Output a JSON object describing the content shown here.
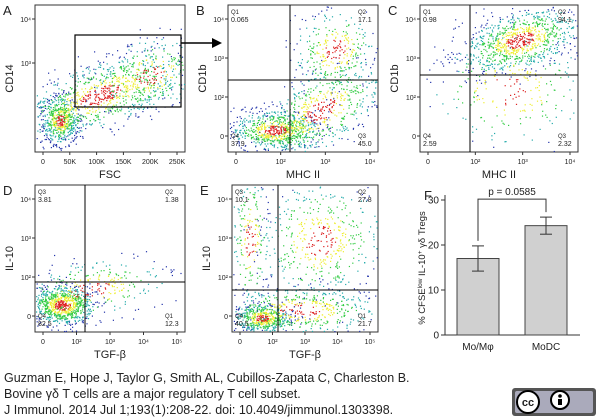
{
  "panels": [
    {
      "letter": "A",
      "y_label": "CD14",
      "x_label": "FSC",
      "x_ticks": [
        "0",
        "50K",
        "100K",
        "150K",
        "200K",
        "250K"
      ],
      "y_ticks": [
        "10⁴",
        "10³"
      ],
      "quadrants": []
    },
    {
      "letter": "B",
      "y_label": "CD1b",
      "x_label": "MHC II",
      "x_ticks": [
        "0",
        "10²",
        "10³",
        "10⁴"
      ],
      "y_ticks": [
        "10⁴",
        "10³",
        "10²",
        "0"
      ],
      "quadrants": [
        {
          "label": "Q1",
          "value": "0.065"
        },
        {
          "label": "Q2",
          "value": "17.1"
        },
        {
          "label": "Q4",
          "value": "37.9"
        },
        {
          "label": "Q3",
          "value": "45.0"
        }
      ]
    },
    {
      "letter": "C",
      "y_label": "CD1b",
      "x_label": "MHC II",
      "x_ticks": [
        "0",
        "10²",
        "10³",
        "10⁴"
      ],
      "y_ticks": [
        "10⁴",
        "10³",
        "10²",
        "0"
      ],
      "quadrants": [
        {
          "label": "Q1",
          "value": "0.98"
        },
        {
          "label": "Q2",
          "value": "94.1"
        },
        {
          "label": "Q4",
          "value": "2.59"
        },
        {
          "label": "Q3",
          "value": "2.32"
        }
      ]
    },
    {
      "letter": "D",
      "y_label": "IL-10",
      "x_label": "TGF-β",
      "x_ticks": [
        "0",
        "10²",
        "10³",
        "10⁴",
        "10⁵"
      ],
      "y_ticks": [
        "10⁴",
        "10³",
        "10²",
        "0"
      ],
      "quadrants": [
        {
          "label": "Q3",
          "value": "3.81"
        },
        {
          "label": "Q2",
          "value": "1.38"
        },
        {
          "label": "Q4",
          "value": "82.5"
        },
        {
          "label": "Q1",
          "value": "12.3"
        }
      ]
    },
    {
      "letter": "E",
      "y_label": "IL-10",
      "x_label": "TGF-β",
      "x_ticks": [
        "0",
        "10²",
        "10³",
        "10⁴",
        "10⁵"
      ],
      "y_ticks": [
        "10⁴",
        "10³",
        "10²",
        "0"
      ],
      "quadrants": [
        {
          "label": "Q3",
          "value": "10.1"
        },
        {
          "label": "Q2",
          "value": "27.8"
        },
        {
          "label": "Q4",
          "value": "40.5"
        },
        {
          "label": "Q1",
          "value": "21.7"
        }
      ]
    }
  ],
  "bar_chart": {
    "letter": "F",
    "y_label": [
      "% CFSE",
      "low",
      " IL-10",
      "+",
      " γδ Tregs"
    ],
    "categories": [
      "Mo/Mφ",
      "MoDC"
    ],
    "values": [
      17,
      24.3
    ],
    "errors": [
      2.8,
      1.9
    ],
    "color": "#d0d0d0",
    "ylim": [
      0,
      30
    ],
    "yticks": [
      0,
      10,
      20,
      30
    ],
    "annotation": "p = 0.0585"
  },
  "citation": [
    "Guzman E, Hope J, Taylor G, Smith AL, Cubillos-Zapata C, Charleston B.",
    "Bovine γδ T cells are a major regulatory T cell subset.",
    "J Immunol. 2014 Jul 1;193(1):208-22. doi: 10.4049/jimmunol.1303398."
  ]
}
